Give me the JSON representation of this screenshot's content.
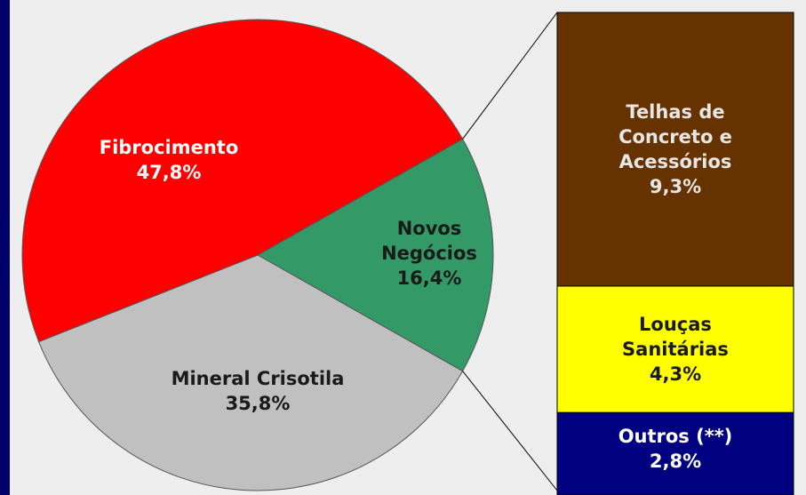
{
  "chart_data": {
    "type": "bar_of_pie",
    "categories": [
      "Novos Negócios",
      "Mineral Crisotila",
      "Fibrocimento"
    ],
    "values": [
      16.4,
      35.8,
      47.8
    ],
    "value_labels": [
      "16,4%",
      "35,8%",
      "47,8%"
    ],
    "colors": [
      "#339966",
      "#c0c0c0",
      "#ff0000"
    ],
    "bar": {
      "categories": [
        "Telhas de Concreto e Acessórios",
        "Louças Sanitárias",
        "Outros (**)"
      ],
      "values": [
        9.3,
        4.3,
        2.8
      ],
      "value_labels": [
        "9,3%",
        "4,3%",
        "2,8%"
      ],
      "colors": [
        "#663300",
        "#ffff00",
        "#000080"
      ]
    }
  }
}
